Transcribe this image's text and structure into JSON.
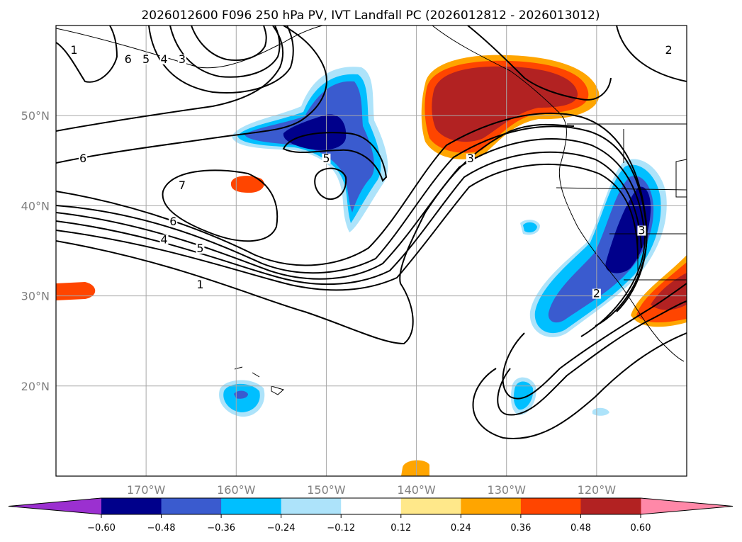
{
  "title": "2026012600 F096 250 hPa PV, IVT Landfall PC (2026012812 - 2026013012)",
  "chart_data": {
    "type": "contour_map",
    "title": "2026012600 F096 250 hPa PV, IVT Landfall PC (2026012812 - 2026013012)",
    "projection": "PlateCarree",
    "lon_range": [
      -180,
      -110
    ],
    "lat_range": [
      10,
      60
    ],
    "x_ticks": [
      {
        "value": -170,
        "label": "170°W"
      },
      {
        "value": -160,
        "label": "160°W"
      },
      {
        "value": -150,
        "label": "150°W"
      },
      {
        "value": -140,
        "label": "140°W"
      },
      {
        "value": -130,
        "label": "130°W"
      },
      {
        "value": -120,
        "label": "120°W"
      }
    ],
    "y_ticks": [
      {
        "value": 20,
        "label": "20°N"
      },
      {
        "value": 30,
        "label": "30°N"
      },
      {
        "value": 40,
        "label": "40°N"
      },
      {
        "value": 50,
        "label": "50°N"
      }
    ],
    "grid": true,
    "colorbar": {
      "orientation": "horizontal",
      "extend": "both",
      "levels": [
        "−0.60",
        "−0.48",
        "−0.36",
        "−0.24",
        "−0.12",
        "0.12",
        "0.24",
        "0.36",
        "0.48",
        "0.60"
      ],
      "colors": [
        "#9b30d0",
        "#00008b",
        "#3a5bcf",
        "#00bfff",
        "#ade3fa",
        "#ffffff",
        "#ffe88a",
        "#ffa500",
        "#ff4500",
        "#b22222",
        "#ff88a8"
      ]
    },
    "filled_features": [
      {
        "name": "pc-positive-gulf-of-alaska",
        "lon": -128,
        "lat": 51,
        "max_class": "0.48"
      },
      {
        "name": "pc-positive-baja",
        "lon": -112,
        "lat": 29,
        "max_class": "0.36"
      },
      {
        "name": "pc-negative-central-north-pacific",
        "lon": -150,
        "lat": 46,
        "min_class": "-0.60"
      },
      {
        "name": "pc-negative-california-coast",
        "lon": -118,
        "lat": 33,
        "min_class": "-0.60"
      },
      {
        "name": "pc-negative-hawaii",
        "lon": -160,
        "lat": 19,
        "min_class": "-0.48"
      }
    ],
    "pv_contour_labels": [
      {
        "text": "7",
        "lon": -166,
        "lat": 42
      },
      {
        "text": "6",
        "lon": -177,
        "lat": 45
      },
      {
        "text": "6",
        "lon": -167,
        "lat": 38
      },
      {
        "text": "5",
        "lon": -164,
        "lat": 35
      },
      {
        "text": "4",
        "lon": -168,
        "lat": 36
      },
      {
        "text": "1",
        "lon": -164,
        "lat": 31
      },
      {
        "text": "5",
        "lon": -150,
        "lat": 45
      },
      {
        "text": "3",
        "lon": -134,
        "lat": 45
      },
      {
        "text": "2",
        "lon": -120,
        "lat": 30
      },
      {
        "text": "3",
        "lon": -115,
        "lat": 37
      },
      {
        "text": "2",
        "lon": -112,
        "lat": 57
      },
      {
        "text": "6",
        "lon": -172,
        "lat": 56
      },
      {
        "text": "5",
        "lon": -170,
        "lat": 56
      },
      {
        "text": "4",
        "lon": -168,
        "lat": 56
      },
      {
        "text": "3",
        "lon": -166,
        "lat": 56
      },
      {
        "text": "1",
        "lon": -178,
        "lat": 57
      }
    ]
  }
}
